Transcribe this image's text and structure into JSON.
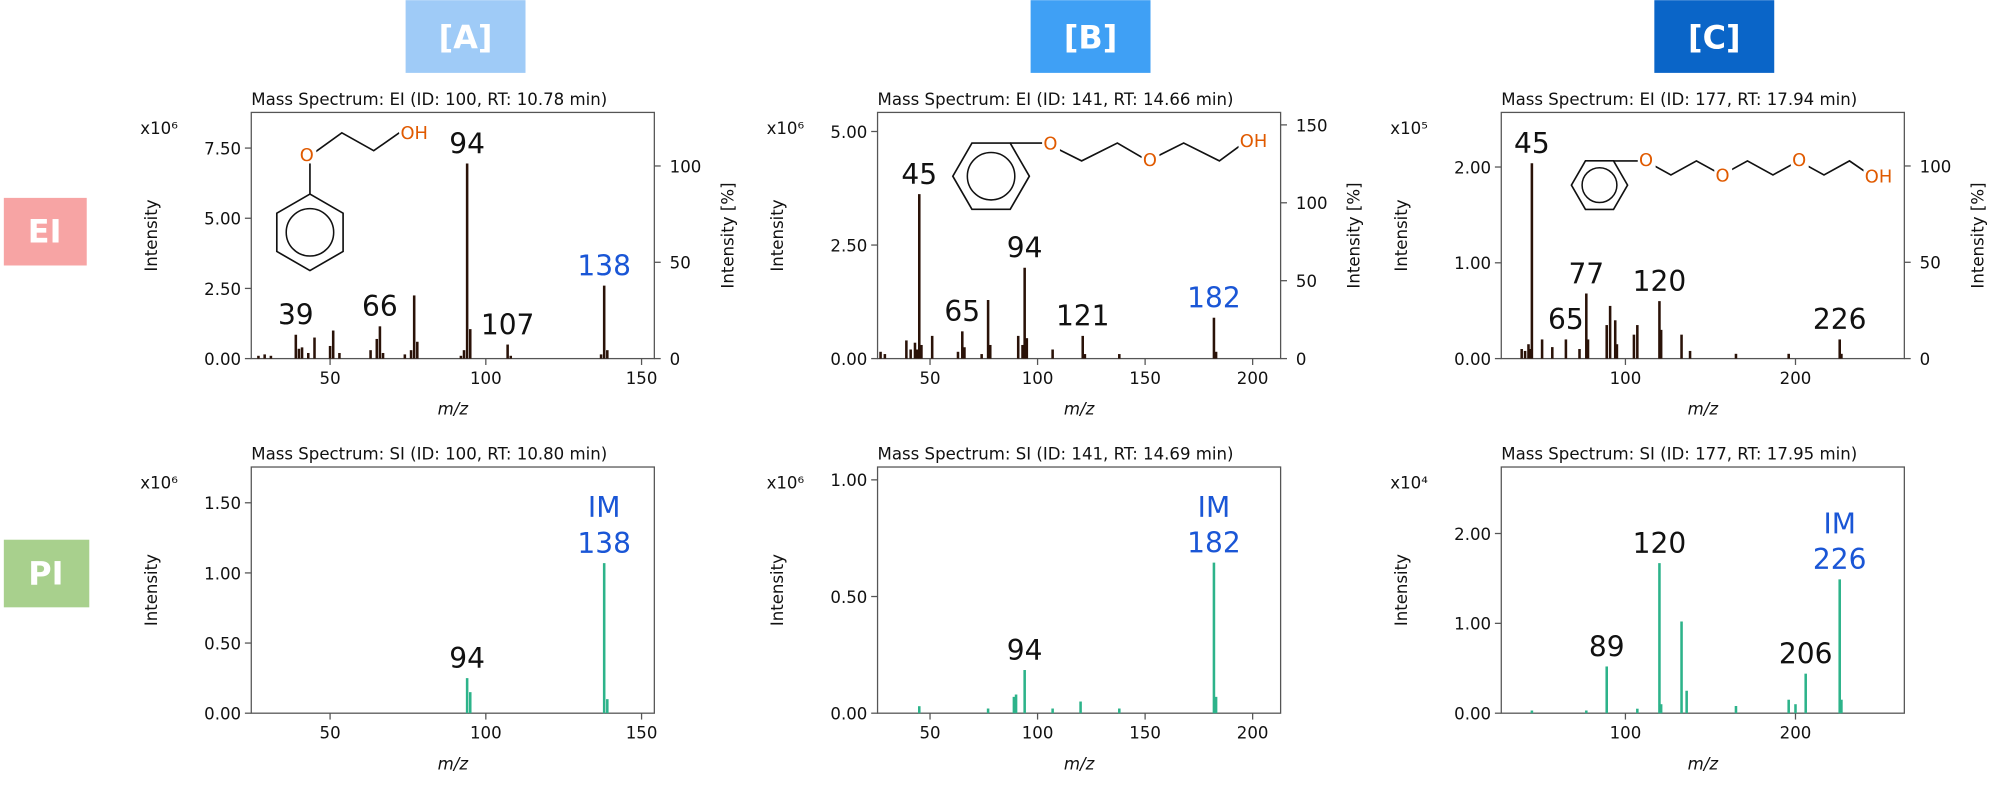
{
  "columns": [
    "[A]",
    "[B]",
    "[C]"
  ],
  "rows": [
    "EI",
    "PI"
  ],
  "chart_data": [
    {
      "type": "bar",
      "title": "Mass Spectrum: EI (ID: 100, RT: 10.78 min)",
      "scale_label": "x10⁶",
      "xlabel": "m/z",
      "ylabel": "Intensity",
      "y2label": "Intensity [%]",
      "color": "#2a1208",
      "xlim": [
        24.7,
        154.1
      ],
      "xticks": [
        50,
        100,
        150
      ],
      "ylim": [
        0,
        8.77
      ],
      "yticks": [
        {
          "value": 0,
          "label": "0.00"
        },
        {
          "value": 2.5,
          "label": "2.50"
        },
        {
          "value": 5,
          "label": "5.00"
        },
        {
          "value": 7.5,
          "label": "7.50"
        }
      ],
      "y2lim": [
        0,
        127.8
      ],
      "y2ticks": [
        0,
        50,
        100
      ],
      "structure_atoms": [
        "O",
        "OH"
      ],
      "x": [
        27,
        29,
        31,
        39,
        40,
        41,
        43,
        45,
        50,
        51,
        53,
        63,
        65,
        66,
        67,
        74,
        76,
        77,
        78,
        92,
        93,
        94,
        95,
        107,
        108,
        137,
        138,
        139
      ],
      "values": [
        0.1,
        0.15,
        0.1,
        0.85,
        0.35,
        0.4,
        0.2,
        0.75,
        0.45,
        1.0,
        0.2,
        0.3,
        0.7,
        1.15,
        0.2,
        0.15,
        0.3,
        2.25,
        0.6,
        0.1,
        0.3,
        6.95,
        1.05,
        0.5,
        0.1,
        0.15,
        2.6,
        0.3
      ],
      "peak_labels": [
        {
          "x": 39,
          "label": "39"
        },
        {
          "x": 66,
          "label": "66"
        },
        {
          "x": 94,
          "label": "94"
        },
        {
          "x": 107,
          "label": "107"
        },
        {
          "x": 138,
          "label": "138",
          "color": "#1a56d6"
        }
      ]
    },
    {
      "type": "bar",
      "title": "Mass Spectrum: EI (ID: 141, RT: 14.66 min)",
      "scale_label": "x10⁶",
      "xlabel": "m/z",
      "ylabel": "Intensity",
      "y2label": "Intensity [%]",
      "color": "#2a1208",
      "xlim": [
        25.6,
        213
      ],
      "xticks": [
        50,
        100,
        150,
        200
      ],
      "ylim": [
        0,
        5.42
      ],
      "yticks": [
        {
          "value": 0,
          "label": "0.00"
        },
        {
          "value": 2.5,
          "label": "2.50"
        },
        {
          "value": 5,
          "label": "5.00"
        }
      ],
      "y2lim": [
        0,
        158
      ],
      "y2ticks": [
        0,
        50,
        100,
        150
      ],
      "structure_atoms": [
        "O",
        "O",
        "OH"
      ],
      "x": [
        27,
        29,
        39,
        41,
        43,
        44,
        45,
        46,
        51,
        63,
        65,
        66,
        74,
        77,
        78,
        91,
        93,
        94,
        95,
        107,
        121,
        122,
        138,
        182,
        183
      ],
      "values": [
        0.15,
        0.1,
        0.4,
        0.2,
        0.35,
        0.2,
        3.62,
        0.3,
        0.5,
        0.15,
        0.6,
        0.25,
        0.1,
        1.29,
        0.3,
        0.5,
        0.3,
        2.0,
        0.45,
        0.2,
        0.5,
        0.1,
        0.1,
        0.9,
        0.15
      ],
      "peak_labels": [
        {
          "x": 45,
          "label": "45"
        },
        {
          "x": 65,
          "label": "65"
        },
        {
          "x": 94,
          "label": "94"
        },
        {
          "x": 121,
          "label": "121"
        },
        {
          "x": 182,
          "label": "182",
          "color": "#1a56d6"
        }
      ]
    },
    {
      "type": "bar",
      "title": "Mass Spectrum: EI (ID: 177, RT: 17.94 min)",
      "scale_label": "x10⁵",
      "xlabel": "m/z",
      "ylabel": "Intensity",
      "y2label": "Intensity [%]",
      "color": "#2a1208",
      "xlim": [
        27,
        264
      ],
      "xticks": [
        100,
        200
      ],
      "ylim": [
        0,
        2.57
      ],
      "yticks": [
        {
          "value": 0,
          "label": "0.00"
        },
        {
          "value": 1,
          "label": "1.00"
        },
        {
          "value": 2,
          "label": "2.00"
        }
      ],
      "y2lim": [
        0,
        127.8
      ],
      "y2ticks": [
        0,
        50,
        100
      ],
      "structure_atoms": [
        "O",
        "O",
        "O",
        "OH"
      ],
      "x": [
        39,
        41,
        43,
        44,
        45,
        51,
        57,
        65,
        73,
        77,
        78,
        89,
        91,
        94,
        95,
        105,
        107,
        120,
        121,
        133,
        138,
        165,
        196,
        226,
        227
      ],
      "values": [
        0.1,
        0.08,
        0.15,
        0.1,
        2.04,
        0.2,
        0.12,
        0.2,
        0.1,
        0.68,
        0.2,
        0.35,
        0.55,
        0.4,
        0.15,
        0.25,
        0.35,
        0.6,
        0.3,
        0.25,
        0.08,
        0.05,
        0.05,
        0.2,
        0.05
      ],
      "peak_labels": [
        {
          "x": 45,
          "label": "45"
        },
        {
          "x": 65,
          "label": "65"
        },
        {
          "x": 77,
          "label": "77"
        },
        {
          "x": 120,
          "label": "120"
        },
        {
          "x": 226,
          "label": "226"
        }
      ]
    },
    {
      "type": "bar",
      "title": "Mass Spectrum: SI (ID: 100, RT: 10.80 min)",
      "scale_label": "x10⁶",
      "xlabel": "m/z",
      "ylabel": "Intensity",
      "color": "#2db38a",
      "xlim": [
        24.7,
        154.1
      ],
      "xticks": [
        50,
        100,
        150
      ],
      "ylim": [
        0,
        1.755
      ],
      "yticks": [
        {
          "value": 0,
          "label": "0.00"
        },
        {
          "value": 0.5,
          "label": "0.50"
        },
        {
          "value": 1,
          "label": "1.00"
        },
        {
          "value": 1.5,
          "label": "1.50"
        }
      ],
      "x": [
        94,
        95,
        138,
        139
      ],
      "values": [
        0.25,
        0.15,
        1.07,
        0.1
      ],
      "peak_labels": [
        {
          "x": 94,
          "label": "94"
        },
        {
          "x": 138,
          "label": "138",
          "prefix": "IM",
          "color": "#1a56d6"
        }
      ]
    },
    {
      "type": "bar",
      "title": "Mass Spectrum: SI (ID: 141, RT: 14.69 min)",
      "scale_label": "x10⁶",
      "xlabel": "m/z",
      "ylabel": "Intensity",
      "color": "#2db38a",
      "xlim": [
        25.6,
        213
      ],
      "xticks": [
        50,
        100,
        150,
        200
      ],
      "ylim": [
        0,
        1.055
      ],
      "yticks": [
        {
          "value": 0,
          "label": "0.00"
        },
        {
          "value": 0.5,
          "label": "0.50"
        },
        {
          "value": 1,
          "label": "1.00"
        }
      ],
      "x": [
        45,
        77,
        89,
        90,
        94,
        107,
        120,
        138,
        182,
        183
      ],
      "values": [
        0.03,
        0.02,
        0.07,
        0.08,
        0.185,
        0.02,
        0.05,
        0.02,
        0.645,
        0.07
      ],
      "peak_labels": [
        {
          "x": 94,
          "label": "94"
        },
        {
          "x": 182,
          "label": "182",
          "prefix": "IM",
          "color": "#1a56d6"
        }
      ]
    },
    {
      "type": "bar",
      "title": "Mass Spectrum: SI (ID: 177, RT: 17.95 min)",
      "scale_label": "x10⁴",
      "xlabel": "m/z",
      "ylabel": "Intensity",
      "color": "#2db38a",
      "xlim": [
        27,
        264
      ],
      "xticks": [
        100,
        200
      ],
      "ylim": [
        0,
        2.74
      ],
      "yticks": [
        {
          "value": 0,
          "label": "0.00"
        },
        {
          "value": 1,
          "label": "1.00"
        },
        {
          "value": 2,
          "label": "2.00"
        }
      ],
      "x": [
        45,
        77,
        89,
        107,
        120,
        121,
        133,
        136,
        165,
        196,
        200,
        206,
        226,
        227
      ],
      "values": [
        0.03,
        0.03,
        0.52,
        0.05,
        1.67,
        0.1,
        1.02,
        0.25,
        0.08,
        0.15,
        0.1,
        0.44,
        1.49,
        0.15
      ],
      "peak_labels": [
        {
          "x": 89,
          "label": "89"
        },
        {
          "x": 120,
          "label": "120"
        },
        {
          "x": 206,
          "label": "206"
        },
        {
          "x": 226,
          "label": "226",
          "prefix": "IM",
          "color": "#1a56d6"
        }
      ]
    }
  ]
}
